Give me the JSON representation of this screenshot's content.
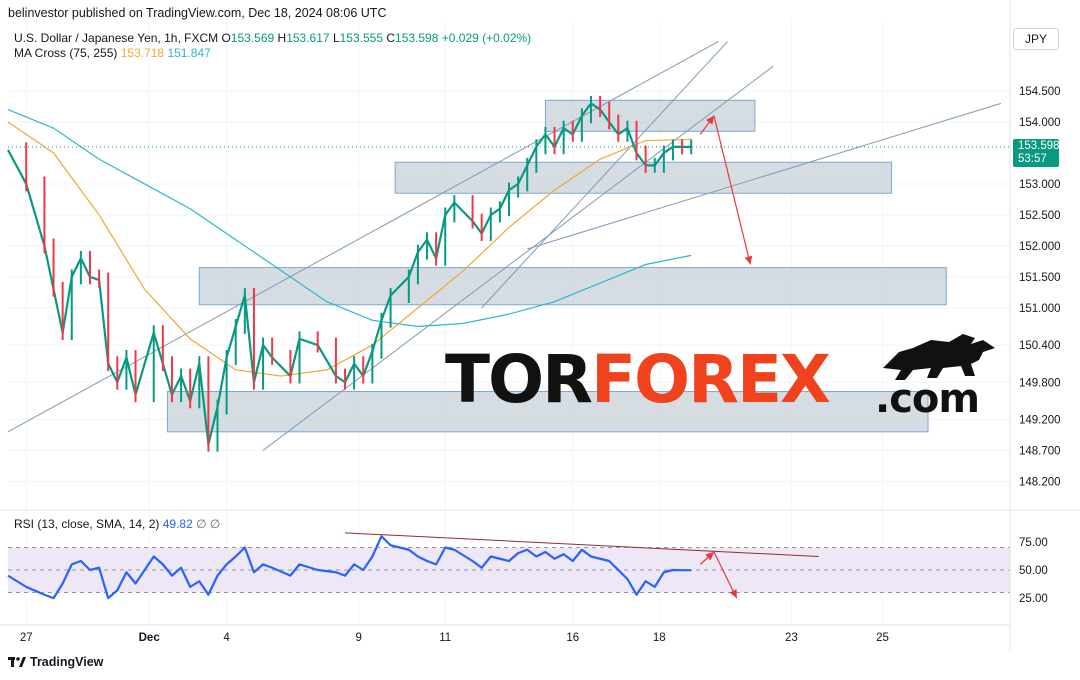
{
  "header": {
    "publisher": "belinvestor published on TradingView.com, Dec 18, 2024 08:06 UTC",
    "symbol": "U.S. Dollar / Japanese Yen, 1h, FXCM",
    "open_label": "O",
    "open": "153.569",
    "high_label": "H",
    "high": "153.617",
    "low_label": "L",
    "low": "153.555",
    "close_label": "C",
    "close": "153.598",
    "change": "+0.029 (+0.02%)",
    "ma_label": "MA Cross (75, 255)",
    "ma_fast": "153.718",
    "ma_slow": "151.847",
    "rsi_label": "RSI (13, close, SMA, 14, 2)",
    "rsi_value": "49.82",
    "rsi_extra": "∅ ∅"
  },
  "currency": "JPY",
  "price_tag": {
    "price": "153.598",
    "countdown": "53:57"
  },
  "footer": {
    "brand": "TradingView"
  },
  "watermark": {
    "part1": "TOR",
    "part2": "FOREX",
    "part3": ".com"
  },
  "colors": {
    "up": "#089981",
    "down": "#f23645",
    "candle": "#089981",
    "ma_fast": "#f7a335",
    "ma_slow": "#2fb6cf",
    "rsi": "#2962ff",
    "channel": "#7f9bb3",
    "zone_fill": "#b2c1cc",
    "arrow": "#e8383d",
    "rsi_trend": "#8b2f2f",
    "rsi_band": "#ede7f6",
    "price_line": "#089981",
    "forex": "#f0421c"
  },
  "chart_data": {
    "type": "line",
    "title": "U.S. Dollar / Japanese Yen, 1h, FXCM",
    "price_axis": [
      "154.500",
      "154.000",
      "153.000",
      "152.500",
      "152.000",
      "151.500",
      "151.000",
      "150.400",
      "149.800",
      "149.200",
      "148.700",
      "148.200"
    ],
    "rsi_axis": [
      "75.00",
      "50.00",
      "25.00"
    ],
    "x_labels": [
      "27",
      "Dec",
      "4",
      "9",
      "11",
      "16",
      "18",
      "23",
      "25"
    ],
    "ylim": [
      147.9,
      155.0
    ],
    "rsi_ylim": [
      10,
      90
    ],
    "x_range": [
      0,
      110
    ],
    "x_label_positions": [
      2,
      15.5,
      24,
      38.5,
      48,
      62,
      71.5,
      86,
      96
    ],
    "series": [
      {
        "name": "USD/JPY",
        "x": [
          0,
          2,
          4,
          5,
          6,
          7,
          8,
          9,
          10,
          11,
          12,
          13,
          14,
          16,
          17,
          18,
          19,
          20,
          21,
          22,
          23,
          24,
          25,
          26,
          27,
          28,
          29,
          31,
          32,
          34,
          36,
          37,
          38,
          39,
          40,
          41,
          42,
          44,
          45,
          46,
          47,
          48,
          49,
          51,
          52,
          53,
          54,
          55,
          56,
          57,
          58,
          59,
          60,
          61,
          62,
          63,
          64,
          65,
          66,
          67,
          68,
          69,
          70,
          71,
          72,
          73,
          74,
          75
        ],
        "values": [
          153.55,
          153.0,
          152.0,
          151.3,
          150.6,
          151.5,
          151.8,
          151.5,
          151.45,
          150.1,
          149.8,
          150.2,
          149.6,
          150.6,
          150.1,
          149.6,
          149.9,
          149.5,
          150.1,
          148.8,
          149.4,
          150.2,
          150.7,
          151.2,
          149.8,
          150.4,
          150.2,
          149.9,
          150.5,
          150.4,
          149.9,
          149.8,
          150.1,
          149.9,
          150.3,
          150.8,
          151.2,
          151.5,
          151.9,
          152.1,
          151.8,
          152.5,
          152.7,
          152.4,
          152.2,
          152.5,
          152.6,
          152.9,
          153.0,
          153.3,
          153.6,
          153.8,
          153.6,
          153.9,
          153.8,
          154.1,
          154.3,
          154.2,
          154.0,
          153.8,
          153.9,
          153.5,
          153.3,
          153.3,
          153.5,
          153.6,
          153.598,
          153.598
        ]
      },
      {
        "name": "MA 75",
        "x": [
          0,
          5,
          10,
          15,
          20,
          25,
          30,
          35,
          40,
          45,
          50,
          55,
          60,
          65,
          70,
          75
        ],
        "values": [
          154.0,
          153.5,
          152.5,
          151.3,
          150.5,
          150.0,
          149.9,
          150.0,
          150.4,
          151.0,
          151.6,
          152.3,
          152.9,
          153.4,
          153.7,
          153.718
        ]
      },
      {
        "name": "MA 255",
        "x": [
          0,
          5,
          10,
          15,
          20,
          25,
          30,
          35,
          40,
          45,
          50,
          55,
          60,
          65,
          70,
          75
        ],
        "values": [
          154.2,
          153.9,
          153.4,
          153.0,
          152.6,
          152.1,
          151.6,
          151.1,
          150.8,
          150.7,
          150.75,
          150.9,
          151.1,
          151.4,
          151.7,
          151.847
        ]
      },
      {
        "name": "RSI",
        "x": [
          0,
          2,
          4,
          5,
          6,
          7,
          8,
          9,
          10,
          11,
          12,
          13,
          14,
          16,
          17,
          18,
          19,
          20,
          21,
          22,
          23,
          24,
          25,
          26,
          27,
          28,
          29,
          31,
          32,
          34,
          36,
          37,
          38,
          39,
          40,
          41,
          42,
          44,
          45,
          46,
          47,
          48,
          49,
          51,
          52,
          53,
          54,
          55,
          56,
          57,
          58,
          59,
          60,
          61,
          62,
          63,
          64,
          65,
          66,
          67,
          68,
          69,
          70,
          71,
          72,
          73,
          74,
          75
        ],
        "values": [
          45,
          35,
          28,
          25,
          38,
          55,
          58,
          50,
          52,
          25,
          32,
          48,
          38,
          62,
          55,
          45,
          52,
          35,
          40,
          28,
          45,
          55,
          62,
          70,
          48,
          55,
          52,
          45,
          55,
          50,
          48,
          45,
          55,
          50,
          62,
          80,
          72,
          68,
          62,
          58,
          55,
          70,
          68,
          58,
          52,
          62,
          60,
          58,
          65,
          68,
          62,
          66,
          60,
          64,
          58,
          68,
          62,
          60,
          58,
          50,
          42,
          28,
          40,
          35,
          48,
          50,
          49.82,
          49.82
        ]
      }
    ],
    "zones": [
      {
        "x0": 59,
        "x1": 82,
        "y0": 153.85,
        "y1": 154.35
      },
      {
        "x0": 42.5,
        "x1": 97,
        "y0": 152.85,
        "y1": 153.35
      },
      {
        "x0": 21,
        "x1": 103,
        "y0": 151.05,
        "y1": 151.65
      },
      {
        "x0": 17.5,
        "x1": 101,
        "y0": 149.0,
        "y1": 149.65
      }
    ],
    "channels": [
      {
        "x0": 0,
        "y0": 149.0,
        "x1": 78,
        "y1": 155.3
      },
      {
        "x0": 28,
        "y0": 148.7,
        "x1": 84,
        "y1": 154.9
      },
      {
        "x0": 52,
        "y0": 151.0,
        "x1": 79,
        "y1": 155.3
      },
      {
        "x0": 57,
        "y0": 151.95,
        "x1": 109,
        "y1": 154.3
      }
    ],
    "arrows": [
      {
        "x0": 76,
        "y0": 153.8,
        "x1": 77.5,
        "y1": 154.1
      },
      {
        "x0": 77.5,
        "y0": 154.1,
        "x1": 81.5,
        "y1": 151.7
      }
    ],
    "rsi_levels": {
      "upper": 70,
      "middle": 50,
      "lower": 30
    },
    "rsi_trend": {
      "x0": 37,
      "y0": 83,
      "x1": 89,
      "y1": 62
    },
    "rsi_arrows": [
      {
        "x0": 76,
        "y0": 55,
        "x1": 77.5,
        "y1": 66
      },
      {
        "x0": 77.5,
        "y0": 66,
        "x1": 80,
        "y1": 25
      }
    ]
  }
}
